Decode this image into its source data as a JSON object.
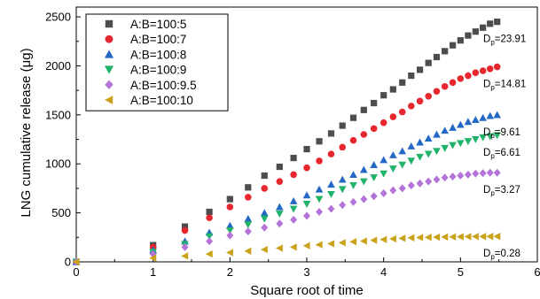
{
  "chart_data": {
    "type": "scatter",
    "title": "",
    "xlabel": "Square root of time",
    "ylabel": "LNG cumulative release (μg)",
    "xlim": [
      0,
      6
    ],
    "ylim": [
      0,
      2600
    ],
    "xticks": [
      0,
      1,
      2,
      3,
      4,
      5,
      6
    ],
    "yticks": [
      0,
      500,
      1000,
      1500,
      2000,
      2500
    ],
    "grid": false,
    "legend_position": "top-left",
    "series": [
      {
        "name": "A:B=100:5",
        "marker": "square",
        "color": "#4d4d4d",
        "x": [
          0,
          1,
          1.414,
          1.732,
          2,
          2.236,
          2.449,
          2.646,
          2.828,
          3,
          3.162,
          3.317,
          3.464,
          3.606,
          3.742,
          3.873,
          4,
          4.123,
          4.243,
          4.359,
          4.472,
          4.583,
          4.69,
          4.796,
          4.899,
          5,
          5.099,
          5.196,
          5.292,
          5.385,
          5.477
        ],
        "y": [
          0,
          170,
          360,
          510,
          640,
          760,
          880,
          970,
          1060,
          1150,
          1230,
          1310,
          1390,
          1470,
          1550,
          1620,
          1700,
          1760,
          1830,
          1900,
          1960,
          2030,
          2090,
          2150,
          2210,
          2260,
          2310,
          2350,
          2390,
          2430,
          2450
        ]
      },
      {
        "name": "A:B=100:7",
        "marker": "circle",
        "color": "#e8262d",
        "x": [
          0,
          1,
          1.414,
          1.732,
          2,
          2.236,
          2.449,
          2.646,
          2.828,
          3,
          3.162,
          3.317,
          3.464,
          3.606,
          3.742,
          3.873,
          4,
          4.123,
          4.243,
          4.359,
          4.472,
          4.583,
          4.69,
          4.796,
          4.899,
          5,
          5.099,
          5.196,
          5.292,
          5.385,
          5.477
        ],
        "y": [
          0,
          150,
          320,
          450,
          560,
          660,
          750,
          820,
          890,
          960,
          1030,
          1100,
          1170,
          1240,
          1300,
          1360,
          1420,
          1480,
          1530,
          1590,
          1640,
          1690,
          1740,
          1790,
          1830,
          1870,
          1900,
          1930,
          1950,
          1970,
          1990
        ]
      },
      {
        "name": "A:B=100:8",
        "marker": "triangle-up",
        "color": "#2368c4",
        "x": [
          0,
          1,
          1.414,
          1.732,
          2,
          2.236,
          2.449,
          2.646,
          2.828,
          3,
          3.162,
          3.317,
          3.464,
          3.606,
          3.742,
          3.873,
          4,
          4.123,
          4.243,
          4.359,
          4.472,
          4.583,
          4.69,
          4.796,
          4.899,
          5,
          5.099,
          5.196,
          5.292,
          5.385,
          5.477
        ],
        "y": [
          0,
          120,
          210,
          300,
          370,
          440,
          500,
          560,
          620,
          680,
          740,
          790,
          840,
          890,
          940,
          990,
          1040,
          1090,
          1130,
          1180,
          1220,
          1260,
          1300,
          1340,
          1370,
          1400,
          1430,
          1450,
          1470,
          1490,
          1500
        ]
      },
      {
        "name": "A:B=100:9",
        "marker": "triangle-down",
        "color": "#22b36a",
        "x": [
          0,
          1,
          1.414,
          1.732,
          2,
          2.236,
          2.449,
          2.646,
          2.828,
          3,
          3.162,
          3.317,
          3.464,
          3.606,
          3.742,
          3.873,
          4,
          4.123,
          4.243,
          4.359,
          4.472,
          4.583,
          4.69,
          4.796,
          4.899,
          5,
          5.099,
          5.196,
          5.292,
          5.385,
          5.477
        ],
        "y": [
          0,
          100,
          180,
          260,
          320,
          380,
          440,
          490,
          540,
          590,
          640,
          690,
          740,
          780,
          820,
          860,
          900,
          950,
          990,
          1030,
          1070,
          1100,
          1130,
          1160,
          1190,
          1210,
          1230,
          1250,
          1270,
          1280,
          1290
        ]
      },
      {
        "name": "A:B=100:9.5",
        "marker": "diamond",
        "color": "#b473d9",
        "x": [
          0,
          1,
          1.414,
          1.732,
          2,
          2.236,
          2.449,
          2.646,
          2.828,
          3,
          3.162,
          3.317,
          3.464,
          3.606,
          3.742,
          3.873,
          4,
          4.123,
          4.243,
          4.359,
          4.472,
          4.583,
          4.69,
          4.796,
          4.899,
          5,
          5.099,
          5.196,
          5.292,
          5.385,
          5.477
        ],
        "y": [
          0,
          80,
          150,
          210,
          270,
          310,
          350,
          390,
          430,
          470,
          510,
          540,
          580,
          610,
          640,
          670,
          700,
          730,
          750,
          780,
          800,
          820,
          840,
          860,
          870,
          880,
          890,
          900,
          905,
          910,
          910
        ]
      },
      {
        "name": "A:B=100:10",
        "marker": "triangle-left",
        "color": "#c9a21a",
        "x": [
          0,
          1,
          1.414,
          1.732,
          2,
          2.236,
          2.449,
          2.646,
          2.828,
          3,
          3.162,
          3.317,
          3.464,
          3.606,
          3.742,
          3.873,
          4,
          4.123,
          4.243,
          4.359,
          4.472,
          4.583,
          4.69,
          4.796,
          4.899,
          5,
          5.099,
          5.196,
          5.292,
          5.385,
          5.477
        ],
        "y": [
          0,
          40,
          60,
          80,
          95,
          110,
          125,
          140,
          150,
          165,
          175,
          185,
          195,
          205,
          212,
          220,
          228,
          235,
          240,
          245,
          248,
          250,
          252,
          254,
          255,
          256,
          257,
          258,
          258,
          259,
          260
        ]
      }
    ],
    "annotations": [
      {
        "series": 0,
        "prefix": "D",
        "sub": "p",
        "text": "=23.91"
      },
      {
        "series": 1,
        "prefix": "D",
        "sub": "p",
        "text": "=14.81"
      },
      {
        "series": 2,
        "prefix": "D",
        "sub": "p",
        "text": "=9.61"
      },
      {
        "series": 3,
        "prefix": "D",
        "sub": "p",
        "text": "=6.61"
      },
      {
        "series": 4,
        "prefix": "D",
        "sub": "p",
        "text": "=3.27"
      },
      {
        "series": 5,
        "prefix": "D",
        "sub": "p",
        "text": "=0.28"
      }
    ]
  }
}
